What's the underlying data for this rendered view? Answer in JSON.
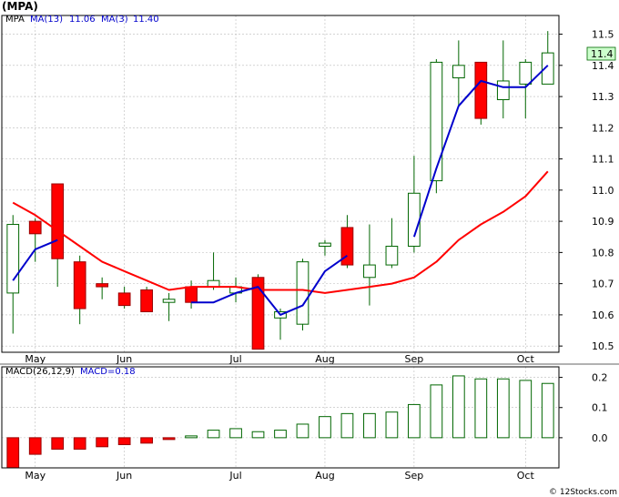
{
  "chart_data": [
    {
      "type": "candlestick",
      "title": "(MPA)",
      "legend": {
        "symbol": "MPA",
        "ma13_label": "MA(13)",
        "ma13_value": "11.06",
        "ma3_label": "MA(3)",
        "ma3_value": "11.40"
      },
      "last_price_label": "11.4",
      "ylim": [
        10.48,
        11.56
      ],
      "y_ticks": [
        10.5,
        10.6,
        10.7,
        10.8,
        10.9,
        11.0,
        11.1,
        11.2,
        11.3,
        11.4,
        11.5
      ],
      "x_ticks": [
        {
          "label": "May",
          "index": 1
        },
        {
          "label": "Jun",
          "index": 5
        },
        {
          "label": "Jul",
          "index": 10
        },
        {
          "label": "Aug",
          "index": 14
        },
        {
          "label": "Sep",
          "index": 18
        },
        {
          "label": "Oct",
          "index": 23
        }
      ],
      "candles": [
        {
          "open": 10.67,
          "high": 10.92,
          "low": 10.54,
          "close": 10.89
        },
        {
          "open": 10.9,
          "high": 10.91,
          "low": 10.77,
          "close": 10.86
        },
        {
          "open": 11.02,
          "high": 11.02,
          "low": 10.69,
          "close": 10.78
        },
        {
          "open": 10.77,
          "high": 10.79,
          "low": 10.57,
          "close": 10.62
        },
        {
          "open": 10.7,
          "high": 10.72,
          "low": 10.65,
          "close": 10.69
        },
        {
          "open": 10.67,
          "high": 10.69,
          "low": 10.62,
          "close": 10.63
        },
        {
          "open": 10.68,
          "high": 10.69,
          "low": 10.61,
          "close": 10.61
        },
        {
          "open": 10.64,
          "high": 10.67,
          "low": 10.58,
          "close": 10.65
        },
        {
          "open": 10.69,
          "high": 10.71,
          "low": 10.62,
          "close": 10.64
        },
        {
          "open": 10.69,
          "high": 10.8,
          "low": 10.68,
          "close": 10.71
        },
        {
          "open": 10.67,
          "high": 10.72,
          "low": 10.64,
          "close": 10.69
        },
        {
          "open": 10.72,
          "high": 10.73,
          "low": 10.49,
          "close": 10.49
        },
        {
          "open": 10.59,
          "high": 10.62,
          "low": 10.52,
          "close": 10.61
        },
        {
          "open": 10.57,
          "high": 10.78,
          "low": 10.55,
          "close": 10.77
        },
        {
          "open": 10.82,
          "high": 10.84,
          "low": 10.79,
          "close": 10.83
        },
        {
          "open": 10.88,
          "high": 10.92,
          "low": 10.75,
          "close": 10.76
        },
        {
          "open": 10.72,
          "high": 10.89,
          "low": 10.63,
          "close": 10.76
        },
        {
          "open": 10.76,
          "high": 10.91,
          "low": 10.75,
          "close": 10.82
        },
        {
          "open": 10.82,
          "high": 11.11,
          "low": 10.8,
          "close": 10.99
        },
        {
          "open": 11.03,
          "high": 11.42,
          "low": 10.99,
          "close": 11.41
        },
        {
          "open": 11.36,
          "high": 11.48,
          "low": 11.27,
          "close": 11.4
        },
        {
          "open": 11.41,
          "high": 11.41,
          "low": 11.21,
          "close": 11.23
        },
        {
          "open": 11.29,
          "high": 11.48,
          "low": 11.23,
          "close": 11.35
        },
        {
          "open": 11.34,
          "high": 11.42,
          "low": 11.23,
          "close": 11.41
        },
        {
          "open": 11.34,
          "high": 11.51,
          "low": 11.34,
          "close": 11.44
        }
      ],
      "ma3": [
        10.71,
        10.81,
        10.84,
        null,
        null,
        null,
        null,
        null,
        10.64,
        10.64,
        10.67,
        10.69,
        10.6,
        10.63,
        10.74,
        10.79,
        null,
        null,
        10.85,
        11.07,
        11.27,
        11.35,
        11.33,
        11.33,
        11.4
      ],
      "ma13": [
        10.96,
        10.92,
        10.87,
        10.82,
        10.77,
        10.74,
        10.71,
        10.68,
        10.69,
        10.69,
        10.69,
        10.68,
        10.68,
        10.68,
        10.67,
        10.68,
        10.69,
        10.7,
        10.72,
        10.77,
        10.84,
        10.89,
        10.93,
        10.98,
        11.06
      ],
      "ma3_color": "#0000cc",
      "ma13_color": "#ff0000",
      "up_color": "#ffffff",
      "down_color": "#ff0000",
      "candle_outline": "#006600",
      "label_bg": "#ccffcc"
    },
    {
      "type": "bar",
      "title": "MACD(26,12,9)",
      "legend": {
        "label": "MACD(26,12,9)",
        "value_label": "MACD=0.18"
      },
      "ylim": [
        -0.1,
        0.235
      ],
      "y_ticks": [
        0.0,
        0.1,
        0.2
      ],
      "y_tick_labels": [
        "0.0",
        "0.1",
        "0.2"
      ],
      "values": [
        -0.1,
        -0.055,
        -0.038,
        -0.038,
        -0.03,
        -0.023,
        -0.018,
        -0.006,
        0.006,
        0.025,
        0.03,
        0.02,
        0.025,
        0.045,
        0.07,
        0.08,
        0.08,
        0.085,
        0.11,
        0.175,
        0.205,
        0.195,
        0.195,
        0.19,
        0.18
      ],
      "up_color": "#ffffff",
      "down_color": "#ff0000",
      "outline": "#006600"
    }
  ],
  "footer": {
    "copyright": "© 12Stocks.com"
  }
}
